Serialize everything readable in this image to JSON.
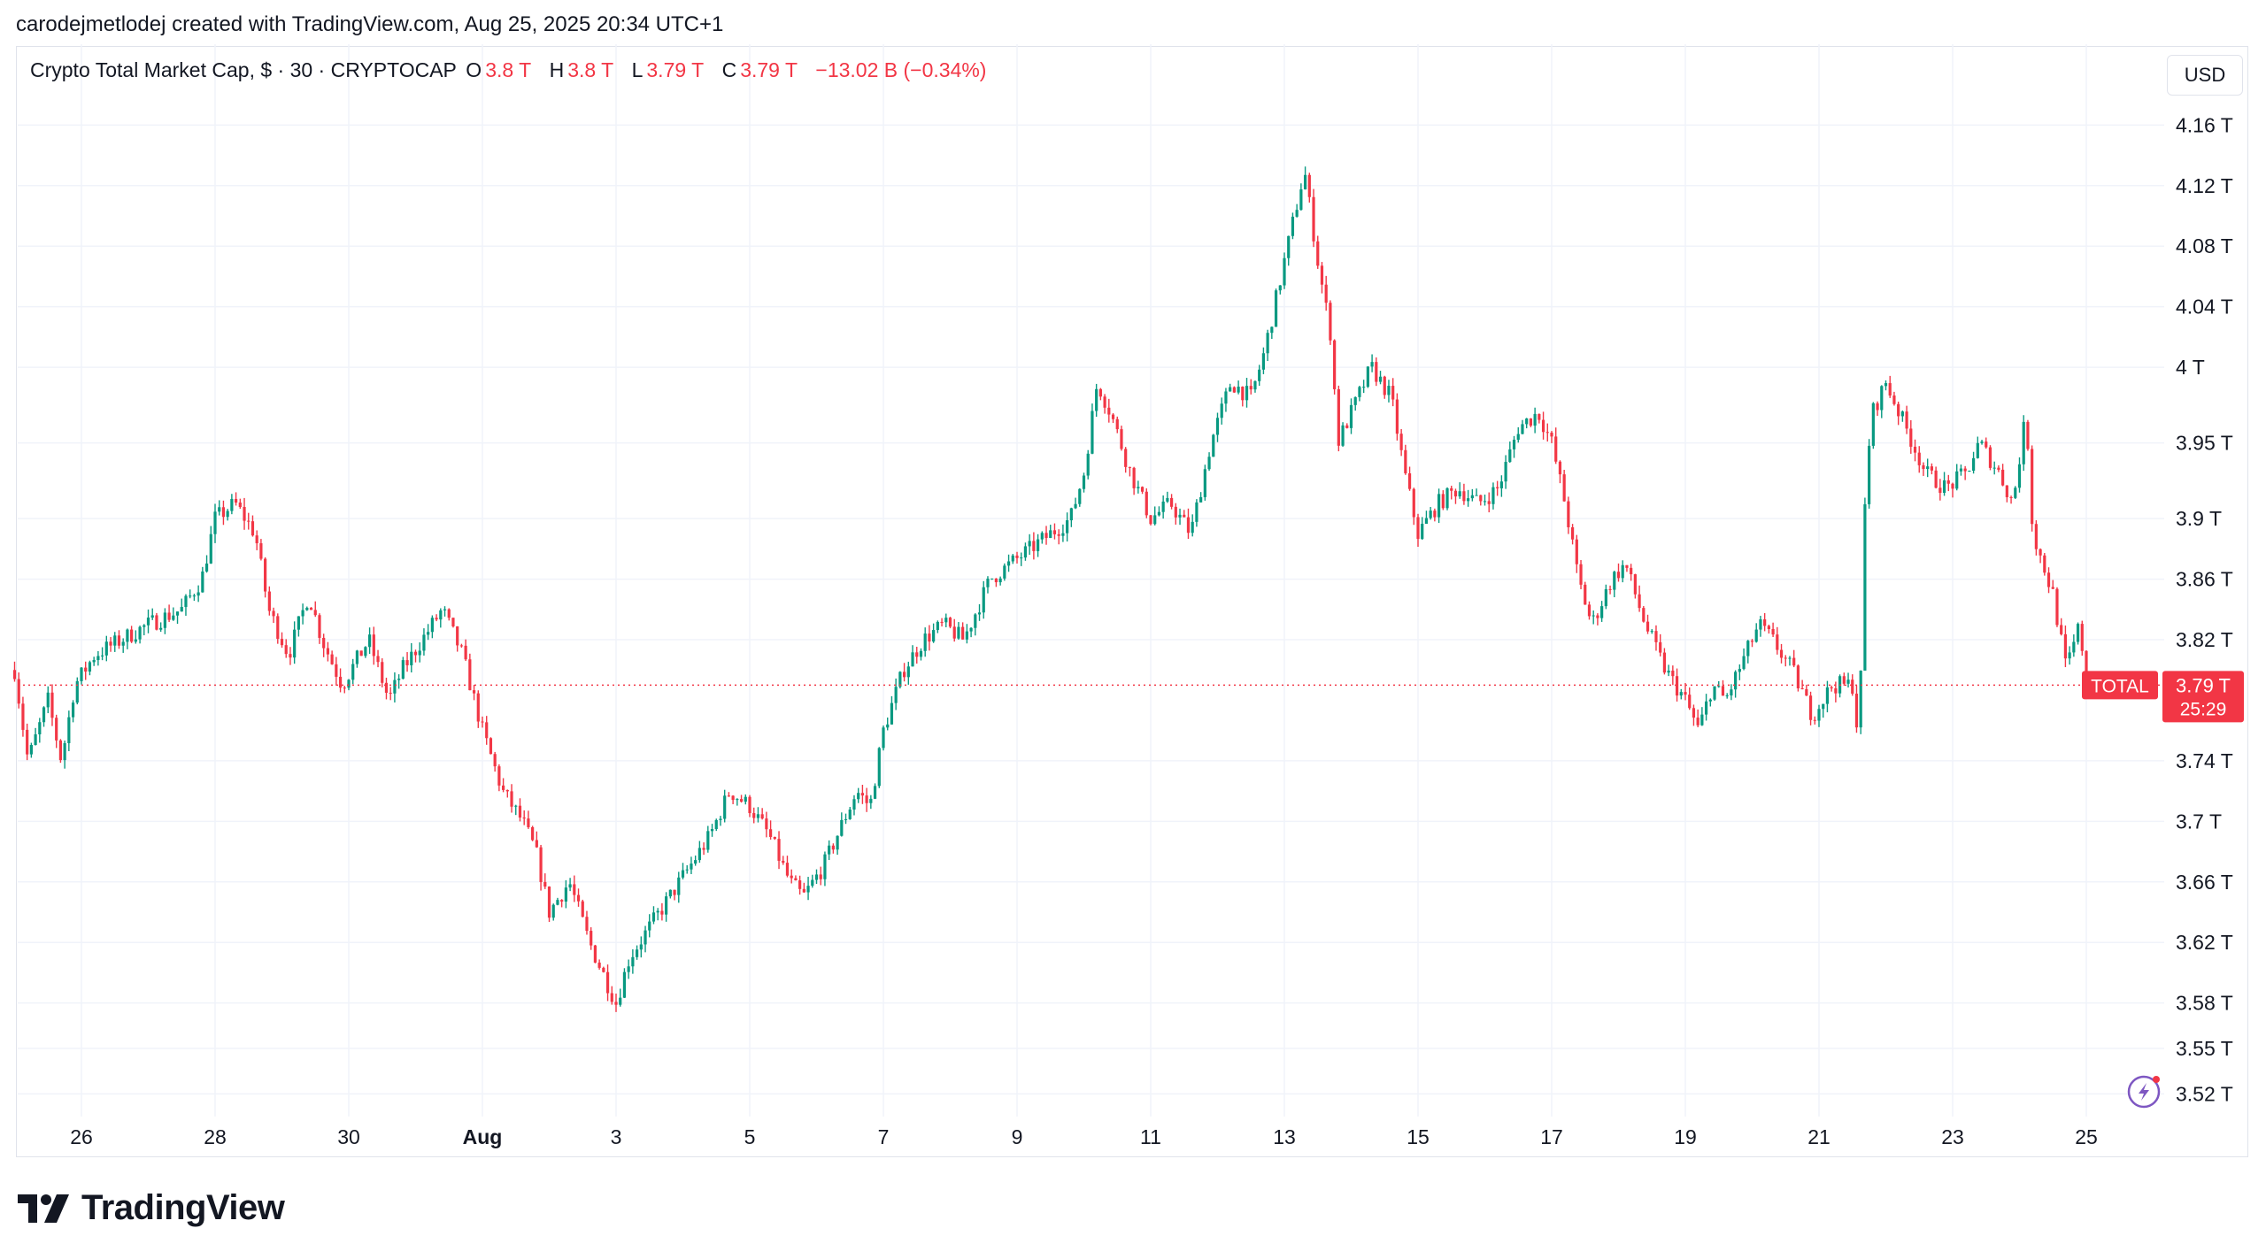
{
  "header": {
    "text": "carodejmetlodej created with TradingView.com, Aug 25, 2025 20:34 UTC+1"
  },
  "legend": {
    "symbol": "Crypto Total Market Cap, $ · 30 · CRYPTOCAP",
    "o_label": "O",
    "o_value": "3.8 T",
    "h_label": "H",
    "h_value": "3.8 T",
    "l_label": "L",
    "l_value": "3.79 T",
    "c_label": "C",
    "c_value": "3.79 T",
    "change": "−13.02 B (−0.34%)"
  },
  "currency_button": "USD",
  "price_tag": {
    "symbol": "TOTAL",
    "price": "3.79 T",
    "countdown": "25:29"
  },
  "footer": {
    "brand": "TradingView"
  },
  "colors": {
    "up": "#089981",
    "down": "#f23645",
    "grid": "#f0f3fa",
    "text": "#131722"
  },
  "chart_data": {
    "type": "candlestick",
    "interval": "30m",
    "symbol": "CRYPTOCAP:TOTAL",
    "x_tick_labels": [
      "26",
      "28",
      "30",
      "Aug",
      "3",
      "5",
      "7",
      "9",
      "11",
      "13",
      "15",
      "17",
      "19",
      "21",
      "23",
      "25"
    ],
    "y_tick_labels": [
      "4.16 T",
      "4.12 T",
      "4.08 T",
      "4.04 T",
      "4 T",
      "3.95 T",
      "3.9 T",
      "3.86 T",
      "3.82 T",
      "3.74 T",
      "3.7 T",
      "3.66 T",
      "3.62 T",
      "3.58 T",
      "3.55 T",
      "3.52 T"
    ],
    "y_ticks": [
      4.16,
      4.12,
      4.08,
      4.04,
      4.0,
      3.95,
      3.9,
      3.86,
      3.82,
      3.74,
      3.7,
      3.66,
      3.62,
      3.58,
      3.55,
      3.52
    ],
    "ylim": [
      3.505,
      4.19
    ],
    "last_price": 3.79,
    "path": [
      {
        "d": 25.0,
        "p": 3.8
      },
      {
        "d": 25.2,
        "p": 3.74
      },
      {
        "d": 25.5,
        "p": 3.78
      },
      {
        "d": 25.7,
        "p": 3.74
      },
      {
        "d": 25.9,
        "p": 3.79
      },
      {
        "d": 26.2,
        "p": 3.81
      },
      {
        "d": 26.6,
        "p": 3.82
      },
      {
        "d": 27.0,
        "p": 3.83
      },
      {
        "d": 27.5,
        "p": 3.84
      },
      {
        "d": 27.8,
        "p": 3.86
      },
      {
        "d": 28.0,
        "p": 3.9
      },
      {
        "d": 28.3,
        "p": 3.91
      },
      {
        "d": 28.6,
        "p": 3.89
      },
      {
        "d": 28.8,
        "p": 3.84
      },
      {
        "d": 29.1,
        "p": 3.81
      },
      {
        "d": 29.4,
        "p": 3.85
      },
      {
        "d": 29.6,
        "p": 3.82
      },
      {
        "d": 29.9,
        "p": 3.79
      },
      {
        "d": 30.3,
        "p": 3.82
      },
      {
        "d": 30.6,
        "p": 3.78
      },
      {
        "d": 30.8,
        "p": 3.8
      },
      {
        "d": 31.1,
        "p": 3.82
      },
      {
        "d": 31.4,
        "p": 3.84
      },
      {
        "d": 31.7,
        "p": 3.81
      },
      {
        "d": 32.0,
        "p": 3.76
      },
      {
        "d": 32.3,
        "p": 3.72
      },
      {
        "d": 32.6,
        "p": 3.7
      },
      {
        "d": 32.8,
        "p": 3.68
      },
      {
        "d": 33.0,
        "p": 3.64
      },
      {
        "d": 33.3,
        "p": 3.66
      },
      {
        "d": 33.6,
        "p": 3.62
      },
      {
        "d": 33.9,
        "p": 3.59
      },
      {
        "d": 34.0,
        "p": 3.58
      },
      {
        "d": 34.2,
        "p": 3.61
      },
      {
        "d": 34.5,
        "p": 3.63
      },
      {
        "d": 34.8,
        "p": 3.65
      },
      {
        "d": 35.1,
        "p": 3.67
      },
      {
        "d": 35.4,
        "p": 3.69
      },
      {
        "d": 35.7,
        "p": 3.72
      },
      {
        "d": 36.0,
        "p": 3.71
      },
      {
        "d": 36.3,
        "p": 3.69
      },
      {
        "d": 36.6,
        "p": 3.66
      },
      {
        "d": 36.8,
        "p": 3.65
      },
      {
        "d": 37.1,
        "p": 3.67
      },
      {
        "d": 37.4,
        "p": 3.7
      },
      {
        "d": 37.6,
        "p": 3.72
      },
      {
        "d": 37.8,
        "p": 3.71
      },
      {
        "d": 38.0,
        "p": 3.76
      },
      {
        "d": 38.3,
        "p": 3.8
      },
      {
        "d": 38.6,
        "p": 3.82
      },
      {
        "d": 38.9,
        "p": 3.83
      },
      {
        "d": 39.2,
        "p": 3.82
      },
      {
        "d": 39.4,
        "p": 3.84
      },
      {
        "d": 39.6,
        "p": 3.86
      },
      {
        "d": 39.9,
        "p": 3.87
      },
      {
        "d": 40.2,
        "p": 3.88
      },
      {
        "d": 40.5,
        "p": 3.89
      },
      {
        "d": 40.8,
        "p": 3.9
      },
      {
        "d": 41.0,
        "p": 3.93
      },
      {
        "d": 41.2,
        "p": 3.99
      },
      {
        "d": 41.4,
        "p": 3.97
      },
      {
        "d": 41.7,
        "p": 3.93
      },
      {
        "d": 42.0,
        "p": 3.9
      },
      {
        "d": 42.3,
        "p": 3.91
      },
      {
        "d": 42.6,
        "p": 3.89
      },
      {
        "d": 42.9,
        "p": 3.95
      },
      {
        "d": 43.2,
        "p": 3.99
      },
      {
        "d": 43.5,
        "p": 3.98
      },
      {
        "d": 43.7,
        "p": 4.01
      },
      {
        "d": 43.9,
        "p": 4.05
      },
      {
        "d": 44.1,
        "p": 4.09
      },
      {
        "d": 44.3,
        "p": 4.13
      },
      {
        "d": 44.5,
        "p": 4.07
      },
      {
        "d": 44.7,
        "p": 4.02
      },
      {
        "d": 44.8,
        "p": 3.95
      },
      {
        "d": 45.0,
        "p": 3.97
      },
      {
        "d": 45.3,
        "p": 4.0
      },
      {
        "d": 45.6,
        "p": 3.98
      },
      {
        "d": 45.8,
        "p": 3.93
      },
      {
        "d": 46.0,
        "p": 3.89
      },
      {
        "d": 46.3,
        "p": 3.91
      },
      {
        "d": 46.6,
        "p": 3.92
      },
      {
        "d": 46.9,
        "p": 3.91
      },
      {
        "d": 47.2,
        "p": 3.92
      },
      {
        "d": 47.5,
        "p": 3.96
      },
      {
        "d": 47.8,
        "p": 3.97
      },
      {
        "d": 48.0,
        "p": 3.95
      },
      {
        "d": 48.2,
        "p": 3.91
      },
      {
        "d": 48.4,
        "p": 3.86
      },
      {
        "d": 48.6,
        "p": 3.83
      },
      {
        "d": 48.9,
        "p": 3.86
      },
      {
        "d": 49.1,
        "p": 3.87
      },
      {
        "d": 49.4,
        "p": 3.83
      },
      {
        "d": 49.7,
        "p": 3.8
      },
      {
        "d": 50.0,
        "p": 3.78
      },
      {
        "d": 50.2,
        "p": 3.76
      },
      {
        "d": 50.4,
        "p": 3.79
      },
      {
        "d": 50.6,
        "p": 3.78
      },
      {
        "d": 50.9,
        "p": 3.81
      },
      {
        "d": 51.1,
        "p": 3.83
      },
      {
        "d": 51.3,
        "p": 3.82
      },
      {
        "d": 51.6,
        "p": 3.8
      },
      {
        "d": 51.9,
        "p": 3.77
      },
      {
        "d": 52.2,
        "p": 3.79
      },
      {
        "d": 52.5,
        "p": 3.79
      },
      {
        "d": 52.6,
        "p": 3.75
      },
      {
        "d": 52.7,
        "p": 3.93
      },
      {
        "d": 52.8,
        "p": 3.97
      },
      {
        "d": 53.0,
        "p": 3.99
      },
      {
        "d": 53.2,
        "p": 3.97
      },
      {
        "d": 53.4,
        "p": 3.95
      },
      {
        "d": 53.6,
        "p": 3.93
      },
      {
        "d": 53.9,
        "p": 3.92
      },
      {
        "d": 54.2,
        "p": 3.93
      },
      {
        "d": 54.4,
        "p": 3.95
      },
      {
        "d": 54.7,
        "p": 3.93
      },
      {
        "d": 54.9,
        "p": 3.91
      },
      {
        "d": 55.1,
        "p": 3.97
      },
      {
        "d": 55.2,
        "p": 3.89
      },
      {
        "d": 55.5,
        "p": 3.85
      },
      {
        "d": 55.7,
        "p": 3.8
      },
      {
        "d": 55.9,
        "p": 3.83
      },
      {
        "d": 56.0,
        "p": 3.79
      }
    ]
  }
}
